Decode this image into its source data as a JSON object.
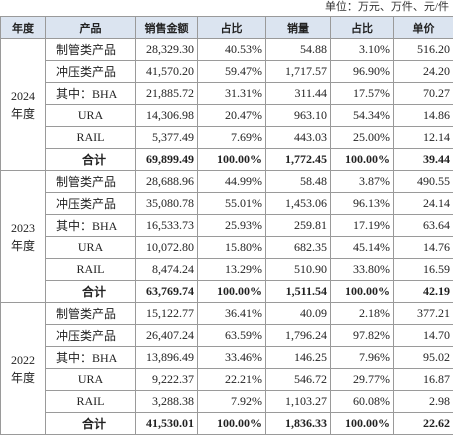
{
  "unit_note": "单位：万元、万件、元/件",
  "table": {
    "header": [
      "年度",
      "产品",
      "销售金额",
      "占比",
      "销量",
      "占比",
      "单价"
    ],
    "groups": [
      {
        "year": "2024",
        "year_suffix": "年度",
        "rows": [
          [
            "制管类产品",
            "28,329.30",
            "40.53%",
            "54.88",
            "3.10%",
            "516.20"
          ],
          [
            "冲压类产品",
            "41,570.20",
            "59.47%",
            "1,717.57",
            "96.90%",
            "24.20"
          ],
          [
            "其中：BHA",
            "21,885.72",
            "31.31%",
            "311.44",
            "17.57%",
            "70.27"
          ],
          [
            "URA",
            "14,306.98",
            "20.47%",
            "963.10",
            "54.34%",
            "14.86"
          ],
          [
            "RAIL",
            "5,377.49",
            "7.69%",
            "443.03",
            "25.00%",
            "12.14"
          ],
          [
            "合计",
            "69,899.49",
            "100.00%",
            "1,772.45",
            "100.00%",
            "39.44"
          ]
        ]
      },
      {
        "year": "2023",
        "year_suffix": "年度",
        "rows": [
          [
            "制管类产品",
            "28,688.96",
            "44.99%",
            "58.48",
            "3.87%",
            "490.55"
          ],
          [
            "冲压类产品",
            "35,080.78",
            "55.01%",
            "1,453.06",
            "96.13%",
            "24.14"
          ],
          [
            "其中：BHA",
            "16,533.73",
            "25.93%",
            "259.81",
            "17.19%",
            "63.64"
          ],
          [
            "URA",
            "10,072.80",
            "15.80%",
            "682.35",
            "45.14%",
            "14.76"
          ],
          [
            "RAIL",
            "8,474.24",
            "13.29%",
            "510.90",
            "33.80%",
            "16.59"
          ],
          [
            "合计",
            "63,769.74",
            "100.00%",
            "1,511.54",
            "100.00%",
            "42.19"
          ]
        ]
      },
      {
        "year": "2022",
        "year_suffix": "年度",
        "rows": [
          [
            "制管类产品",
            "15,122.77",
            "36.41%",
            "40.09",
            "2.18%",
            "377.21"
          ],
          [
            "冲压类产品",
            "26,407.24",
            "63.59%",
            "1,796.24",
            "97.82%",
            "14.70"
          ],
          [
            "其中：BHA",
            "13,896.49",
            "33.46%",
            "146.25",
            "7.96%",
            "95.02"
          ],
          [
            "URA",
            "9,222.37",
            "22.21%",
            "546.72",
            "29.77%",
            "16.87"
          ],
          [
            "RAIL",
            "3,288.38",
            "7.92%",
            "1,103.27",
            "60.08%",
            "2.98"
          ],
          [
            "合计",
            "41,530.01",
            "100.00%",
            "1,836.33",
            "100.00%",
            "22.62"
          ]
        ]
      }
    ]
  }
}
